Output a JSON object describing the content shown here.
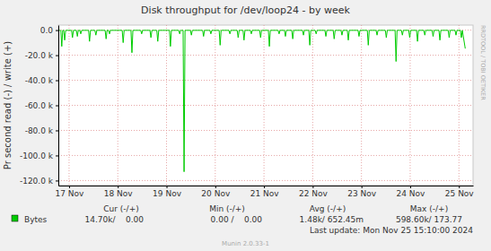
{
  "chart_data": {
    "type": "line",
    "title": "Disk throughput for /dev/loop24 - by week",
    "y_label": "Pr second read (-) / write (+)",
    "x": [
      16.8,
      16.83,
      16.85,
      16.87,
      16.89,
      16.91,
      16.93,
      17.05,
      17.07,
      17.09,
      17.15,
      17.17,
      17.19,
      17.22,
      17.24,
      17.26,
      17.4,
      17.42,
      17.44,
      17.53,
      17.55,
      17.57,
      17.74,
      17.76,
      17.78,
      17.81,
      17.83,
      17.85,
      18.09,
      18.11,
      18.13,
      18.27,
      18.29,
      18.31,
      18.47,
      18.49,
      18.51,
      18.66,
      18.68,
      18.7,
      18.8,
      18.82,
      18.84,
      19.06,
      19.08,
      19.1,
      19.25,
      19.27,
      19.29,
      19.34,
      19.36,
      19.38,
      19.49,
      19.51,
      19.53,
      19.74,
      19.76,
      19.78,
      19.89,
      19.91,
      19.93,
      20.08,
      20.1,
      20.12,
      20.28,
      20.3,
      20.32,
      20.45,
      20.47,
      20.49,
      20.57,
      20.59,
      20.61,
      20.72,
      20.74,
      20.76,
      20.91,
      20.93,
      20.95,
      21.09,
      21.11,
      21.13,
      21.29,
      21.31,
      21.33,
      21.42,
      21.44,
      21.46,
      21.57,
      21.59,
      21.61,
      21.79,
      21.81,
      21.83,
      21.92,
      21.94,
      21.96,
      22.05,
      22.07,
      22.09,
      22.25,
      22.27,
      22.29,
      22.42,
      22.44,
      22.46,
      22.58,
      22.6,
      22.62,
      22.71,
      22.73,
      22.75,
      22.93,
      22.95,
      22.97,
      23.12,
      23.14,
      23.16,
      23.3,
      23.32,
      23.34,
      23.49,
      23.51,
      23.53,
      23.69,
      23.71,
      23.73,
      23.82,
      23.84,
      23.86,
      23.97,
      23.99,
      24.01,
      24.13,
      24.15,
      24.17,
      24.28,
      24.3,
      24.32,
      24.45,
      24.47,
      24.49,
      24.59,
      24.61,
      24.63,
      24.78,
      24.8,
      24.82,
      24.92,
      24.94,
      24.96,
      25.03,
      25.05,
      25.07,
      25.13
    ],
    "series": [
      {
        "name": "Bytes",
        "color": "#00cc00",
        "values": [
          -200,
          -200,
          -13000,
          -200,
          -200,
          -8000,
          -200,
          -200,
          -6000,
          -200,
          -200,
          -5000,
          -200,
          -200,
          -3000,
          -200,
          -200,
          -9000,
          -200,
          -200,
          -4000,
          -200,
          -200,
          -7000,
          -200,
          -200,
          -3000,
          -200,
          -200,
          -10000,
          -200,
          -200,
          -18000,
          -200,
          -200,
          -3000,
          -200,
          -200,
          -6000,
          -200,
          -200,
          -9000,
          -200,
          -200,
          -13000,
          -200,
          -200,
          -3000,
          -200,
          -200,
          -113000,
          -200,
          -200,
          -4000,
          -200,
          -200,
          -5000,
          -200,
          -200,
          -3000,
          -200,
          -200,
          -12000,
          -200,
          -200,
          -3000,
          -200,
          -200,
          -6000,
          -200,
          -200,
          -8000,
          -200,
          -200,
          -3000,
          -200,
          -200,
          -6000,
          -200,
          -200,
          -13000,
          -200,
          -200,
          -3000,
          -200,
          -200,
          -5000,
          -200,
          -200,
          -7000,
          -200,
          -200,
          -4000,
          -200,
          -200,
          -12000,
          -200,
          -200,
          -3000,
          -200,
          -200,
          -5000,
          -200,
          -200,
          -7000,
          -200,
          -200,
          -4000,
          -200,
          -200,
          -8000,
          -200,
          -200,
          -5000,
          -200,
          -200,
          -12000,
          -200,
          -200,
          -4000,
          -200,
          -200,
          -6000,
          -200,
          -200,
          -25000,
          -200,
          -200,
          -4000,
          -200,
          -200,
          -6000,
          -200,
          -200,
          -9000,
          -200,
          -200,
          -4000,
          -200,
          -200,
          -5000,
          -200,
          -200,
          -8000,
          -200,
          -200,
          -6000,
          -200,
          -200,
          -4000,
          -200,
          -200,
          -6000,
          -200,
          -14700
        ]
      }
    ],
    "xlim": [
      16.78,
      25.29
    ],
    "xticks": [
      {
        "value": 17,
        "label": "17 Nov"
      },
      {
        "value": 18,
        "label": "18 Nov"
      },
      {
        "value": 19,
        "label": "19 Nov"
      },
      {
        "value": 20,
        "label": "20 Nov"
      },
      {
        "value": 21,
        "label": "21 Nov"
      },
      {
        "value": 22,
        "label": "22 Nov"
      },
      {
        "value": 23,
        "label": "23 Nov"
      },
      {
        "value": 24,
        "label": "24 Nov"
      },
      {
        "value": 25,
        "label": "25 Nov"
      }
    ],
    "ylim": [
      -124000,
      4000
    ],
    "yticks": [
      {
        "value": 0,
        "label": "0.0"
      },
      {
        "value": -20000,
        "label": "-20.0 k"
      },
      {
        "value": -40000,
        "label": "-40.0 k"
      },
      {
        "value": -60000,
        "label": "-60.0 k"
      },
      {
        "value": -80000,
        "label": "-80.0 k"
      },
      {
        "value": -100000,
        "label": "-100.0 k"
      },
      {
        "value": -120000,
        "label": "-120.0 k"
      }
    ],
    "grid": true,
    "legend_stats": {
      "columns": [
        "Cur (-/+)",
        "Min (-/+)",
        "Avg (-/+)",
        "Max (-/+)"
      ],
      "values": [
        "14.70k/    0.00",
        "0.00 /    0.00",
        "1.48k/ 652.45m",
        "598.60k/ 173.77"
      ]
    },
    "annotations": [
      "RRDTOOL / TOBI OETIKER",
      "Last update: Mon Nov 25 15:10:00 2024",
      "Munin 2.0.33-1"
    ]
  }
}
